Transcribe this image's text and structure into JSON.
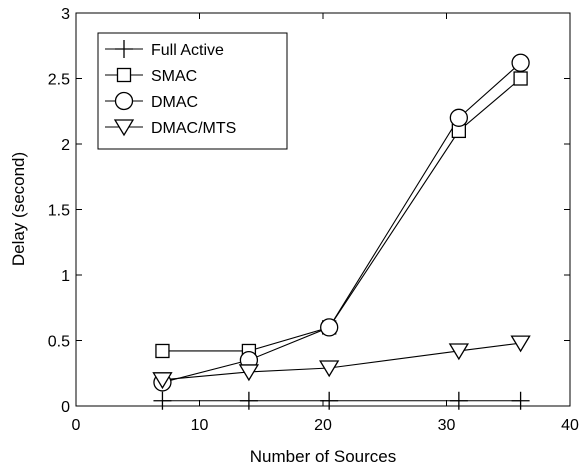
{
  "chart_data": {
    "type": "line",
    "xlabel": "Number of Sources",
    "ylabel": "Delay (second)",
    "xlim": [
      0,
      40
    ],
    "ylim": [
      0,
      3
    ],
    "xticks": [
      0,
      10,
      20,
      30,
      40
    ],
    "yticks": [
      0,
      0.5,
      1,
      1.5,
      2,
      2.5,
      3
    ],
    "ytick_labels": [
      "0",
      "0.5",
      "1",
      "1.5",
      "2",
      "2.5",
      "3"
    ],
    "grid": false,
    "legend_position": "top-left",
    "series": [
      {
        "name": "Full Active",
        "marker": "plus",
        "x": [
          7,
          14,
          20.5,
          31,
          36
        ],
        "y": [
          0.04,
          0.04,
          0.04,
          0.04,
          0.04
        ]
      },
      {
        "name": "SMAC",
        "marker": "square",
        "x": [
          7,
          14,
          20.5,
          31,
          36
        ],
        "y": [
          0.42,
          0.42,
          0.6,
          2.1,
          2.5
        ]
      },
      {
        "name": "DMAC",
        "marker": "circle",
        "x": [
          7,
          14,
          20.5,
          31,
          36
        ],
        "y": [
          0.18,
          0.35,
          0.6,
          2.2,
          2.62
        ]
      },
      {
        "name": "DMAC/MTS",
        "marker": "triangle-down",
        "x": [
          7,
          14,
          20.5,
          31,
          36
        ],
        "y": [
          0.2,
          0.26,
          0.29,
          0.42,
          0.48
        ]
      }
    ]
  }
}
